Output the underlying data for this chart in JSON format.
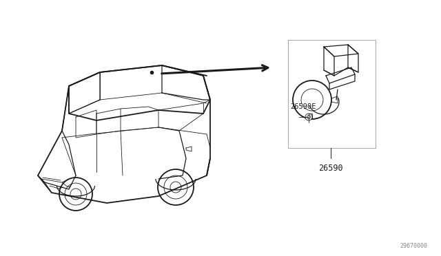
{
  "bg_color": "#ffffff",
  "line_color": "#1a1a1a",
  "gray_line": "#888888",
  "label_26590E": "26590E",
  "label_26590": "26590",
  "diagram_code": "29670000",
  "lw": 0.9,
  "lw_thin": 0.6,
  "lw_thick": 1.3
}
